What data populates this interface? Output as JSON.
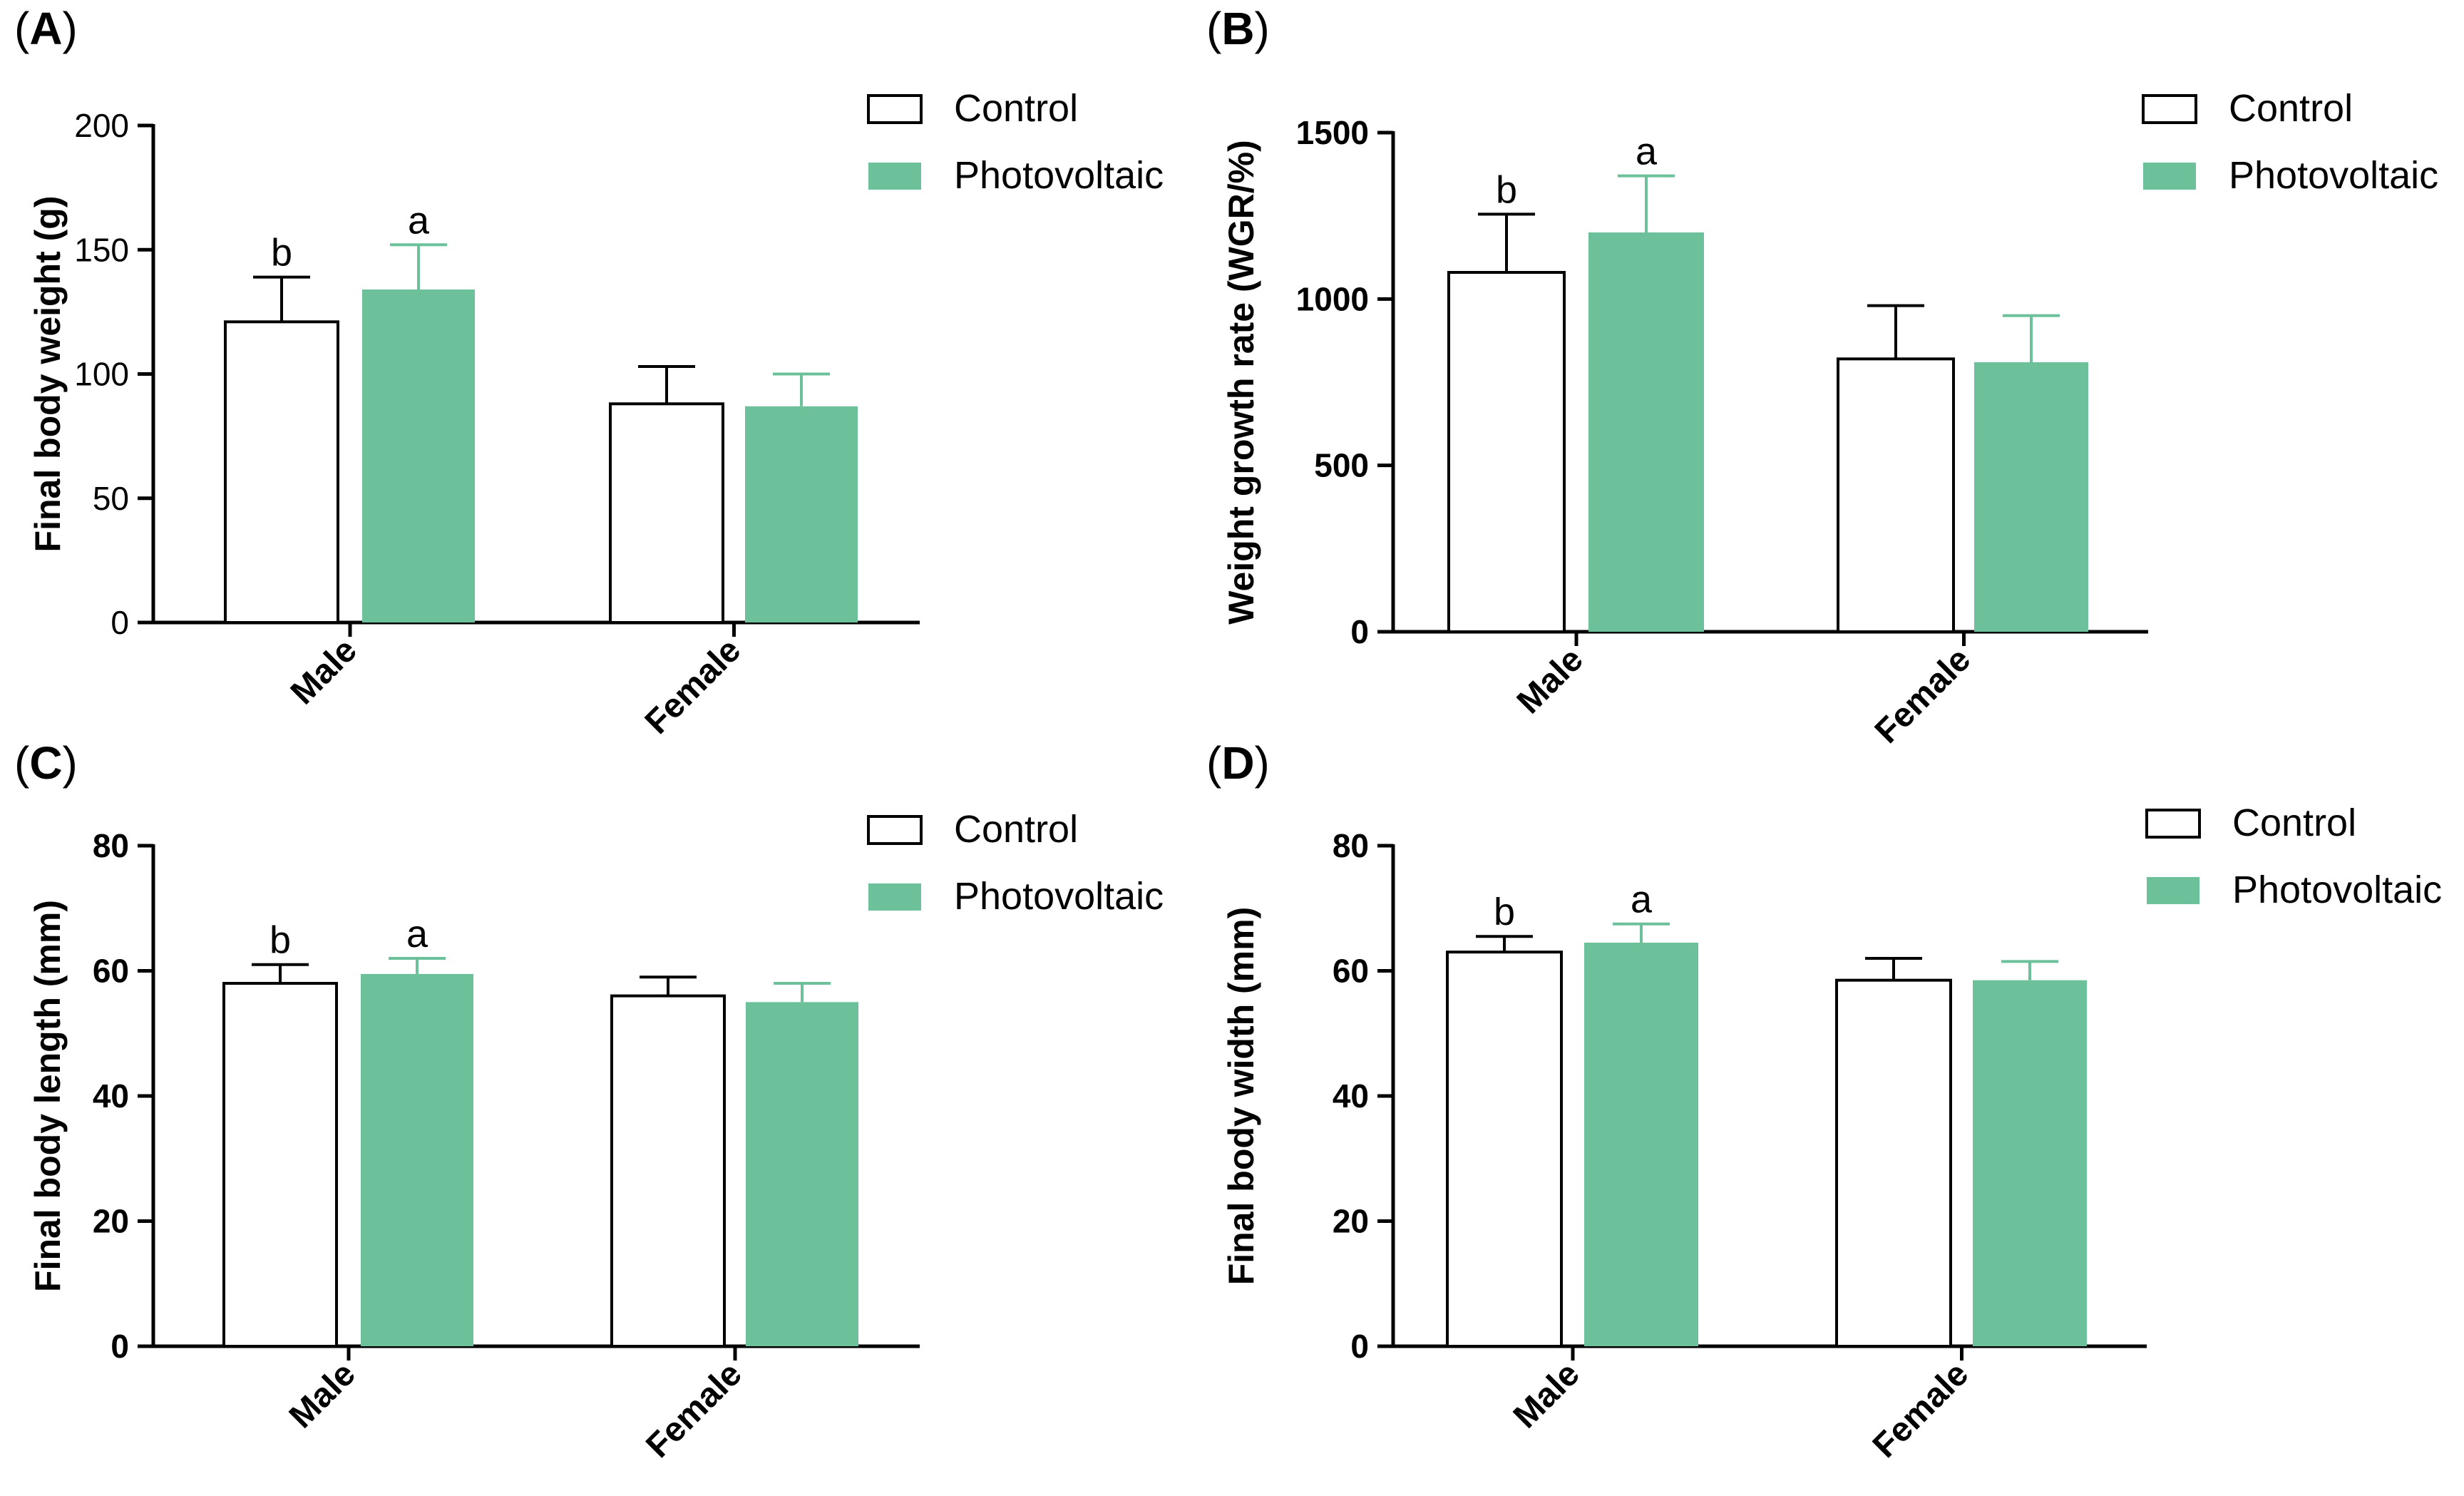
{
  "colors": {
    "control": "#ffffff",
    "photovoltaic": "#6cc09a",
    "axis": "#000000"
  },
  "legend": {
    "items": [
      "Control",
      "Photovoltaic"
    ]
  },
  "chart_data": [
    {
      "panel": "A",
      "panel_label_open": "(",
      "panel_label_close": ")",
      "type": "bar",
      "ylabel": "Final body weight (g)",
      "categories": [
        "Male",
        "Female"
      ],
      "ylim": [
        0,
        200
      ],
      "yticks": [
        0,
        50,
        100,
        150,
        200
      ],
      "ytick_labels": [
        "0",
        "50",
        "100",
        "150",
        "200"
      ],
      "series": [
        {
          "name": "Control",
          "values": [
            121,
            88
          ],
          "errors": [
            18,
            15
          ],
          "letters": [
            "b",
            ""
          ]
        },
        {
          "name": "Photovoltaic",
          "values": [
            134,
            87
          ],
          "errors": [
            18,
            13
          ],
          "letters": [
            "a",
            ""
          ]
        }
      ]
    },
    {
      "panel": "B",
      "panel_label_open": "(",
      "panel_label_close": ")",
      "type": "bar",
      "ylabel": "Weight growth rate (WGR/%)",
      "categories": [
        "Male",
        "Female"
      ],
      "ylim": [
        0,
        1500
      ],
      "yticks": [
        0,
        500,
        1000,
        1500
      ],
      "ytick_labels": [
        "0",
        "500",
        "1000",
        "1500"
      ],
      "series": [
        {
          "name": "Control",
          "values": [
            1080,
            820
          ],
          "errors": [
            175,
            160
          ],
          "letters": [
            "b",
            ""
          ]
        },
        {
          "name": "Photovoltaic",
          "values": [
            1200,
            810
          ],
          "errors": [
            170,
            140
          ],
          "letters": [
            "a",
            ""
          ]
        }
      ]
    },
    {
      "panel": "C",
      "panel_label_open": "(",
      "panel_label_close": ")",
      "type": "bar",
      "ylabel": "Final body length (mm)",
      "categories": [
        "Male",
        "Female"
      ],
      "ylim": [
        0,
        80
      ],
      "yticks": [
        0,
        20,
        40,
        60,
        80
      ],
      "ytick_labels": [
        "0",
        "20",
        "40",
        "60",
        "80"
      ],
      "series": [
        {
          "name": "Control",
          "values": [
            58,
            56
          ],
          "errors": [
            3,
            3
          ],
          "letters": [
            "b",
            ""
          ]
        },
        {
          "name": "Photovoltaic",
          "values": [
            59.5,
            55
          ],
          "errors": [
            2.5,
            3
          ],
          "letters": [
            "a",
            ""
          ]
        }
      ]
    },
    {
      "panel": "D",
      "panel_label_open": "(",
      "panel_label_close": ")",
      "type": "bar",
      "ylabel": "Final body width (mm)",
      "categories": [
        "Male",
        "Female"
      ],
      "ylim": [
        0,
        80
      ],
      "yticks": [
        0,
        20,
        40,
        60,
        80
      ],
      "ytick_labels": [
        "0",
        "20",
        "40",
        "60",
        "80"
      ],
      "series": [
        {
          "name": "Control",
          "values": [
            63,
            58.5
          ],
          "errors": [
            2.5,
            3.5
          ],
          "letters": [
            "b",
            ""
          ]
        },
        {
          "name": "Photovoltaic",
          "values": [
            64.5,
            58.5
          ],
          "errors": [
            3,
            3
          ],
          "letters": [
            "a",
            ""
          ]
        }
      ]
    }
  ]
}
